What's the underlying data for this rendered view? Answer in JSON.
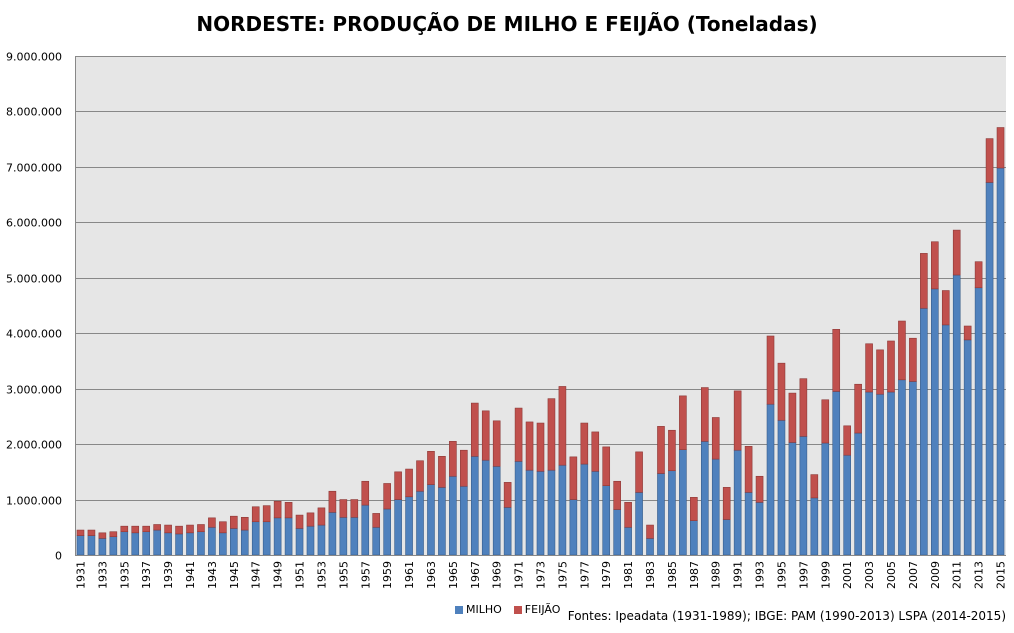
{
  "chart_data": {
    "type": "bar",
    "stacked": true,
    "title": "NORDESTE: PRODUÇÃO DE MILHO E FEIJÃO (Toneladas)",
    "xlabel": "",
    "ylabel": "",
    "ylim": [
      0,
      9000000
    ],
    "yticks": [
      "0",
      "1.000.000",
      "2.000.000",
      "3.000.000",
      "4.000.000",
      "5.000.000",
      "6.000.000",
      "7.000.000",
      "8.000.000",
      "9.000.000"
    ],
    "ytick_values": [
      0,
      1000000,
      2000000,
      3000000,
      4000000,
      5000000,
      6000000,
      7000000,
      8000000,
      9000000
    ],
    "grid": true,
    "legend_position": "bottom",
    "categories": [
      1931,
      1932,
      1933,
      1934,
      1935,
      1936,
      1937,
      1938,
      1939,
      1940,
      1941,
      1942,
      1943,
      1944,
      1945,
      1946,
      1947,
      1948,
      1949,
      1950,
      1951,
      1952,
      1953,
      1954,
      1955,
      1956,
      1957,
      1958,
      1959,
      1960,
      1961,
      1962,
      1963,
      1964,
      1965,
      1966,
      1967,
      1968,
      1969,
      1970,
      1971,
      1972,
      1973,
      1974,
      1975,
      1976,
      1977,
      1978,
      1979,
      1980,
      1981,
      1982,
      1983,
      1984,
      1985,
      1986,
      1987,
      1988,
      1989,
      1990,
      1991,
      1992,
      1993,
      1994,
      1995,
      1996,
      1997,
      1998,
      1999,
      2000,
      2001,
      2002,
      2003,
      2004,
      2005,
      2006,
      2007,
      2008,
      2009,
      2010,
      2011,
      2012,
      2013,
      2014,
      2015
    ],
    "series": [
      {
        "name": "MILHO",
        "color": "#4F81BD",
        "values": [
          350000,
          350000,
          300000,
          330000,
          420000,
          400000,
          420000,
          450000,
          400000,
          380000,
          400000,
          420000,
          500000,
          400000,
          480000,
          450000,
          600000,
          600000,
          670000,
          670000,
          480000,
          520000,
          540000,
          770000,
          680000,
          680000,
          900000,
          500000,
          830000,
          1000000,
          1050000,
          1150000,
          1270000,
          1220000,
          1420000,
          1240000,
          1780000,
          1710000,
          1600000,
          860000,
          1690000,
          1530000,
          1510000,
          1530000,
          1620000,
          1000000,
          1640000,
          1510000,
          1250000,
          820000,
          500000,
          1130000,
          300000,
          1470000,
          1520000,
          1900000,
          620000,
          2050000,
          1730000,
          640000,
          1890000,
          1130000,
          950000,
          2720000,
          2430000,
          2030000,
          2140000,
          1030000,
          2020000,
          2950000,
          1800000,
          2200000,
          2940000,
          2900000,
          2940000,
          3160000,
          3130000,
          4450000,
          4800000,
          4150000,
          5050000,
          3880000,
          4820000,
          6720000,
          6980000
        ]
      },
      {
        "name": "FEIJÃO",
        "color": "#C0504D",
        "values": [
          100000,
          100000,
          100000,
          90000,
          100000,
          120000,
          100000,
          100000,
          140000,
          140000,
          140000,
          130000,
          170000,
          200000,
          220000,
          230000,
          270000,
          290000,
          300000,
          280000,
          240000,
          240000,
          310000,
          380000,
          320000,
          320000,
          430000,
          250000,
          460000,
          500000,
          500000,
          550000,
          600000,
          560000,
          630000,
          650000,
          960000,
          890000,
          820000,
          450000,
          960000,
          870000,
          870000,
          1290000,
          1420000,
          770000,
          740000,
          710000,
          700000,
          510000,
          450000,
          730000,
          240000,
          850000,
          730000,
          970000,
          420000,
          970000,
          750000,
          580000,
          1070000,
          830000,
          470000,
          1230000,
          1030000,
          890000,
          1040000,
          420000,
          780000,
          1120000,
          530000,
          880000,
          870000,
          800000,
          920000,
          1060000,
          780000,
          990000,
          850000,
          620000,
          810000,
          250000,
          470000,
          790000,
          730000
        ]
      }
    ],
    "source_note": "Fontes: Ipeadata (1931-1989); IBGE: PAM (1990-2013)  LSPA (2014-2015)"
  }
}
